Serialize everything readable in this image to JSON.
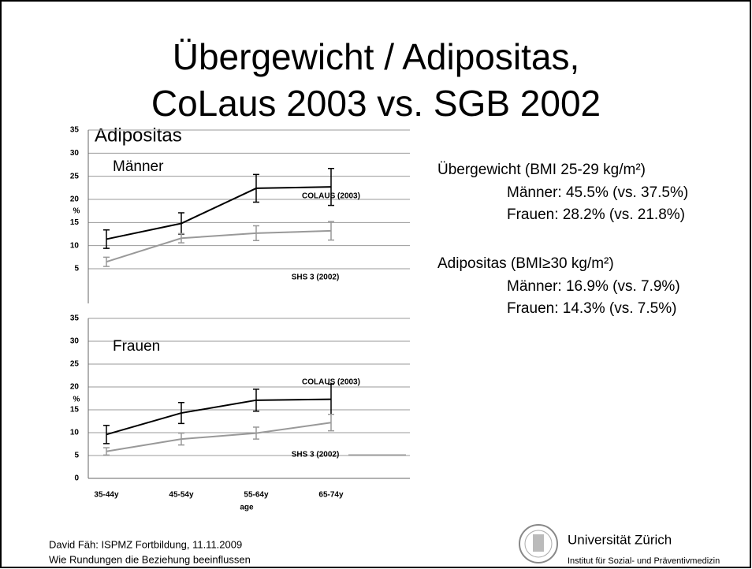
{
  "title_lines": [
    "Übergewicht / Adipositas,",
    "CoLaus 2003 vs. SGB 2002"
  ],
  "section": "Adipositas",
  "info": [
    {
      "heading": "Übergewicht (BMI 25-29 kg/m²)",
      "lines": [
        "Männer: 45.5% (vs. 37.5%)",
        "Frauen: 28.2% (vs. 21.8%)"
      ]
    },
    {
      "heading": "Adipositas (BMI≥30 kg/m²)",
      "lines": [
        "Männer: 16.9% (vs. 7.9%)",
        "Frauen: 14.3% (vs. 7.5%)"
      ]
    }
  ],
  "footer": [
    "David Fäh: ISPMZ Fortbildung, 11.11.2009",
    "Wie Rundungen die Beziehung beeinflussen"
  ],
  "logo": {
    "name": "Universität Zürich",
    "institute": "Institut für Sozial- und Präventivmedizin"
  },
  "chart_data": [
    {
      "type": "line",
      "subtitle": "Männer",
      "ylabel": "%",
      "categories": [
        "35-44y",
        "45-54y",
        "55-64y",
        "65-74y"
      ],
      "ylim": [
        -2.5,
        35
      ],
      "yticks": [
        5,
        10,
        15,
        20,
        25,
        30,
        35
      ],
      "grid": true,
      "series": [
        {
          "name": "COLAUS (2003)",
          "color": "#000000",
          "values": [
            11.4,
            14.8,
            22.4,
            22.7
          ],
          "errors": [
            2.0,
            2.3,
            3.0,
            4.0
          ]
        },
        {
          "name": "SHS 3 (2002)",
          "color": "#999999",
          "values": [
            6.5,
            11.6,
            12.7,
            13.2
          ],
          "errors": [
            1.0,
            1.0,
            1.6,
            2.0
          ]
        }
      ]
    },
    {
      "type": "line",
      "subtitle": "Frauen",
      "ylabel": "%",
      "xlabel": "age",
      "categories": [
        "35-44y",
        "45-54y",
        "55-64y",
        "65-74y"
      ],
      "ylim": [
        0,
        35
      ],
      "yticks": [
        0,
        5,
        10,
        15,
        20,
        25,
        30,
        35
      ],
      "grid": true,
      "series": [
        {
          "name": "COLAUS (2003)",
          "color": "#000000",
          "values": [
            9.6,
            14.3,
            17.1,
            17.3
          ],
          "errors": [
            2.0,
            2.3,
            2.4,
            3.3
          ]
        },
        {
          "name": "SHS 3 (2002)",
          "color": "#999999",
          "values": [
            5.9,
            8.6,
            9.9,
            12.2
          ],
          "errors": [
            0.8,
            1.3,
            1.3,
            1.8
          ]
        }
      ]
    }
  ]
}
